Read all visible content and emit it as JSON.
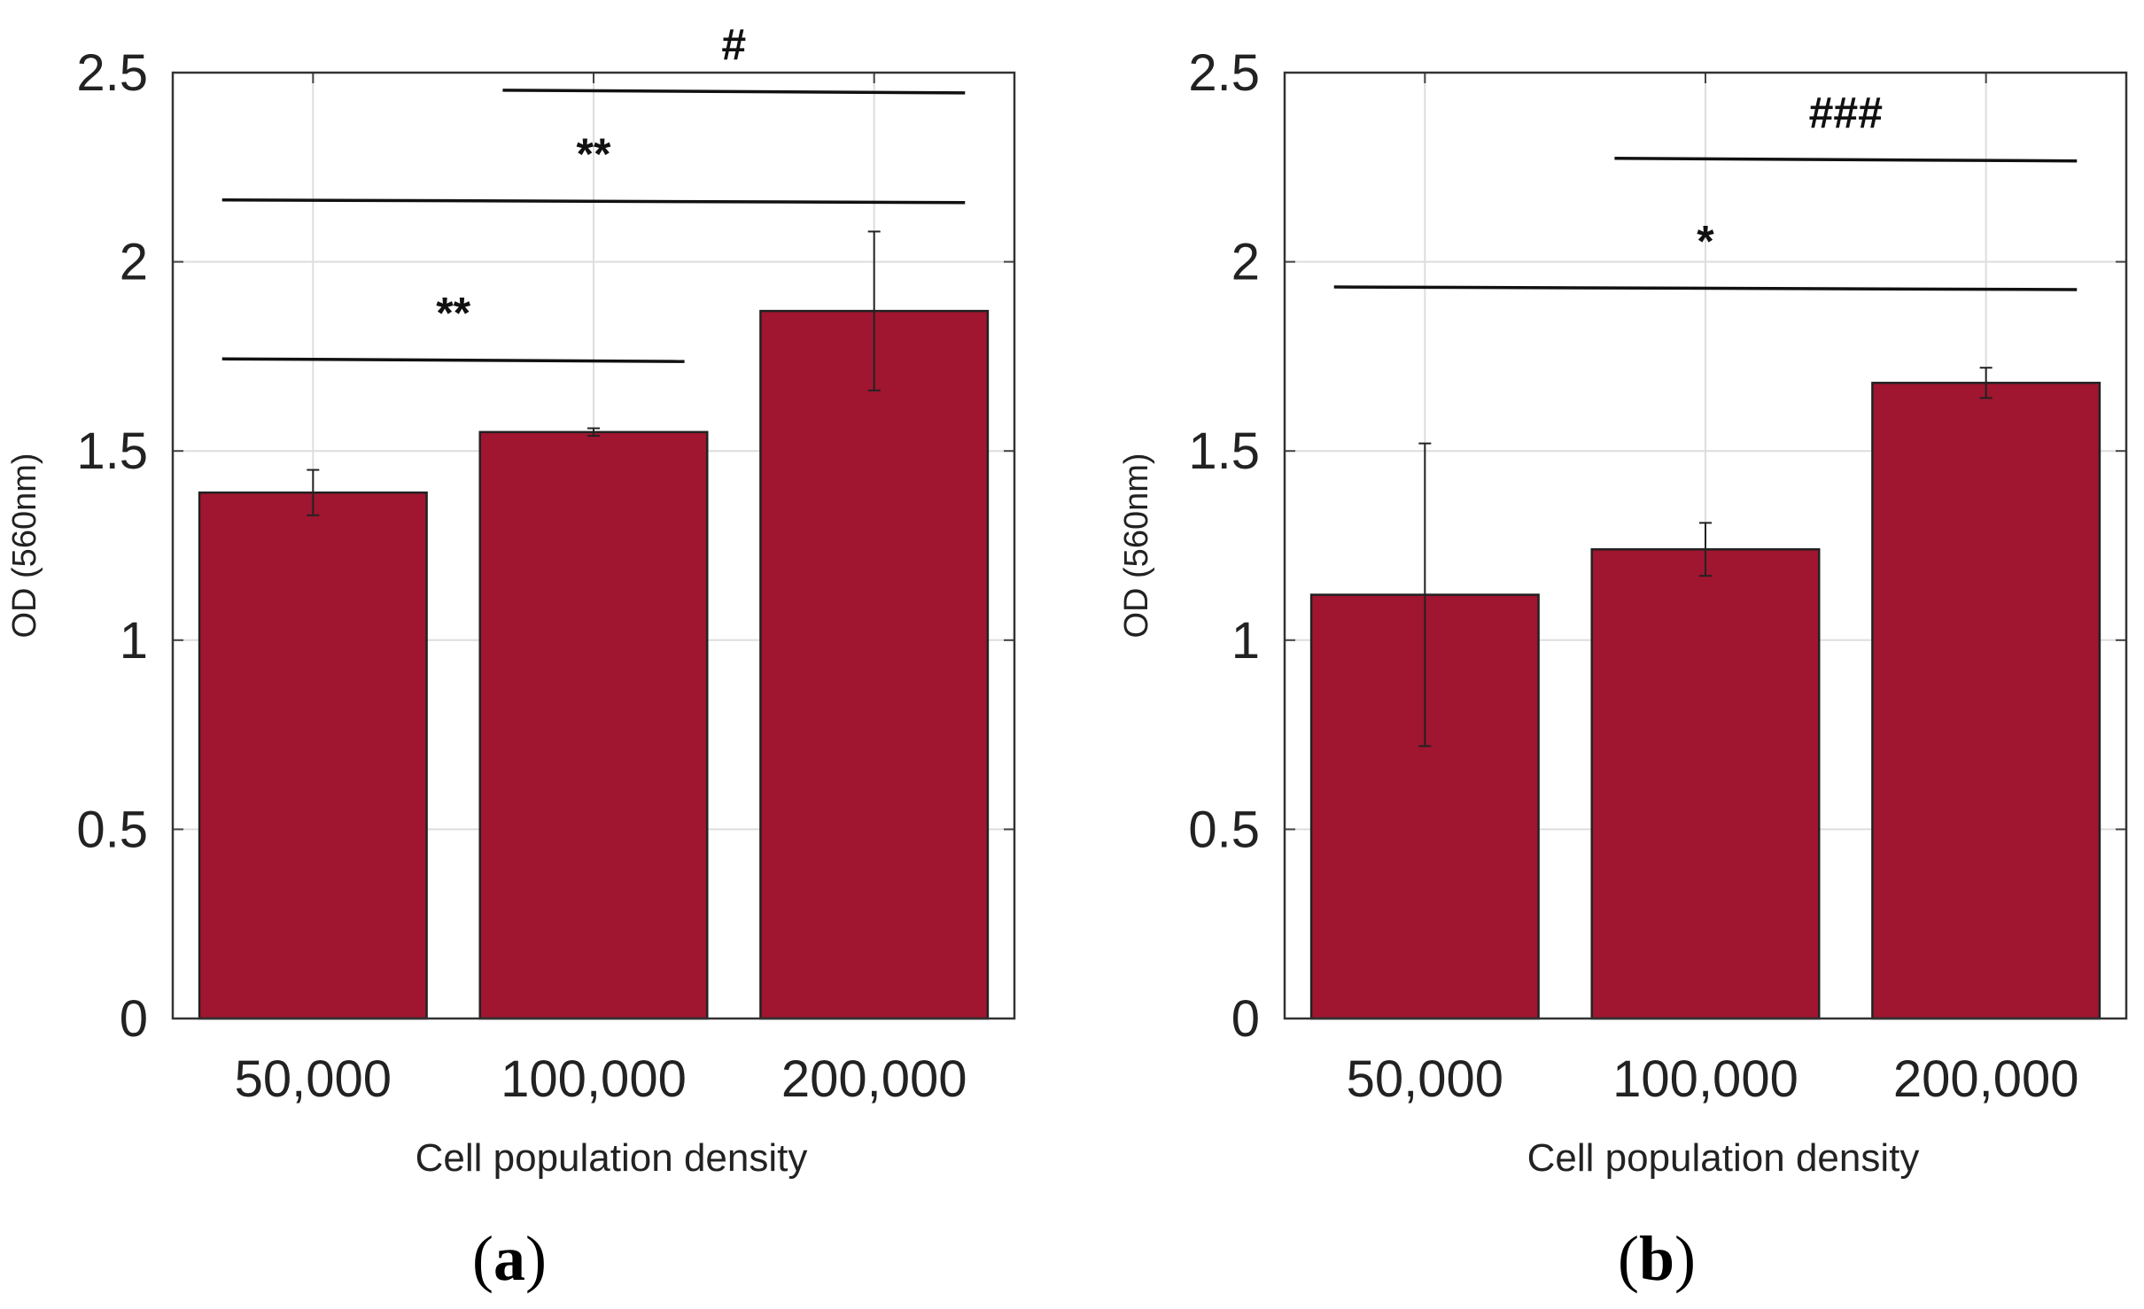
{
  "chart_data": [
    {
      "type": "bar",
      "panel_label": "a",
      "categories": [
        "50,000",
        "100,000",
        "200,000"
      ],
      "values": [
        1.39,
        1.55,
        1.87
      ],
      "errors": [
        0.06,
        0.01,
        0.21
      ],
      "xlabel": "Cell population density",
      "ylabel": "OD (560nm)",
      "ylim": [
        0,
        2.5
      ],
      "yticks": [
        "0",
        "0.5",
        "1",
        "1.5",
        "2",
        "2.5"
      ],
      "grid": true,
      "bar_color": "#A0152F",
      "significance": [
        {
          "from": 0,
          "to": 1,
          "y": 1.74,
          "label": "**"
        },
        {
          "from": 0,
          "to": 2,
          "y": 2.16,
          "label": "**"
        },
        {
          "from": 1,
          "to": 2,
          "y": 2.45,
          "label": "#"
        }
      ]
    },
    {
      "type": "bar",
      "panel_label": "b",
      "categories": [
        "50,000",
        "100,000",
        "200,000"
      ],
      "values": [
        1.12,
        1.24,
        1.68
      ],
      "errors": [
        0.4,
        0.07,
        0.04
      ],
      "xlabel": "Cell population density",
      "ylabel": "OD (560nm)",
      "ylim": [
        0,
        2.5
      ],
      "yticks": [
        "0",
        "0.5",
        "1",
        "1.5",
        "2",
        "2.5"
      ],
      "grid": true,
      "bar_color": "#A0152F",
      "significance": [
        {
          "from": 0,
          "to": 2,
          "y": 1.93,
          "label": "*"
        },
        {
          "from": 1,
          "to": 2,
          "y": 2.27,
          "label": "###"
        }
      ]
    }
  ]
}
